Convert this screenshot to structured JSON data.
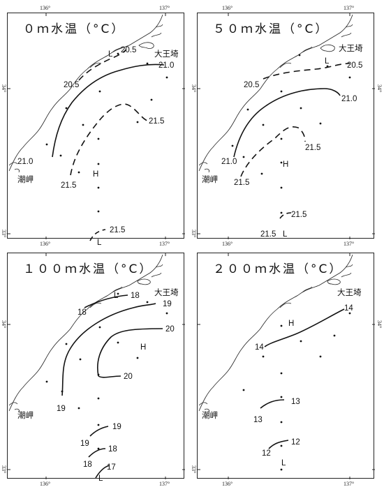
{
  "panels": [
    {
      "title": "０ｍ水温（°C）",
      "lon_labels": [
        "136°",
        "137°"
      ],
      "lat_labels": [
        "34°",
        "33°"
      ],
      "places": {
        "cape_east": "大王埼",
        "cape_west": "潮岬"
      },
      "markers": [
        "L",
        "H",
        "L"
      ],
      "isotherms": [
        "20.5",
        "20.5",
        "21.0",
        "21.0",
        "21.5",
        "21.5",
        "21.5"
      ]
    },
    {
      "title": "５０ｍ水温（°C）",
      "lon_labels": [
        "136°",
        "137°"
      ],
      "lat_labels": [
        "34°",
        "33°"
      ],
      "places": {
        "cape_east": "大王埼",
        "cape_west": "潮岬"
      },
      "markers": [
        "L",
        "H",
        "L"
      ],
      "isotherms": [
        "20.5",
        "20.5",
        "21.0",
        "21.0",
        "21.5",
        "21.5",
        "21.5",
        "21.5"
      ]
    },
    {
      "title": "１００ｍ水温（°C）",
      "lon_labels": [
        "136°",
        "137°"
      ],
      "lat_labels": [
        "34°",
        "33°"
      ],
      "places": {
        "cape_east": "大王埼",
        "cape_west": "潮岬"
      },
      "markers": [
        "L",
        "H",
        "L"
      ],
      "isotherms": [
        "18",
        "18",
        "19",
        "19",
        "20",
        "20",
        "19",
        "19",
        "18",
        "18",
        "17"
      ]
    },
    {
      "title": "２００ｍ水温（°C）",
      "lon_labels": [
        "136°",
        "137°"
      ],
      "lat_labels": [
        "34°",
        "33°"
      ],
      "places": {
        "cape_east": "大王埼",
        "cape_west": "潮岬"
      },
      "markers": [
        "H",
        "L"
      ],
      "isotherms": [
        "14",
        "14",
        "13",
        "13",
        "12",
        "12"
      ]
    }
  ]
}
